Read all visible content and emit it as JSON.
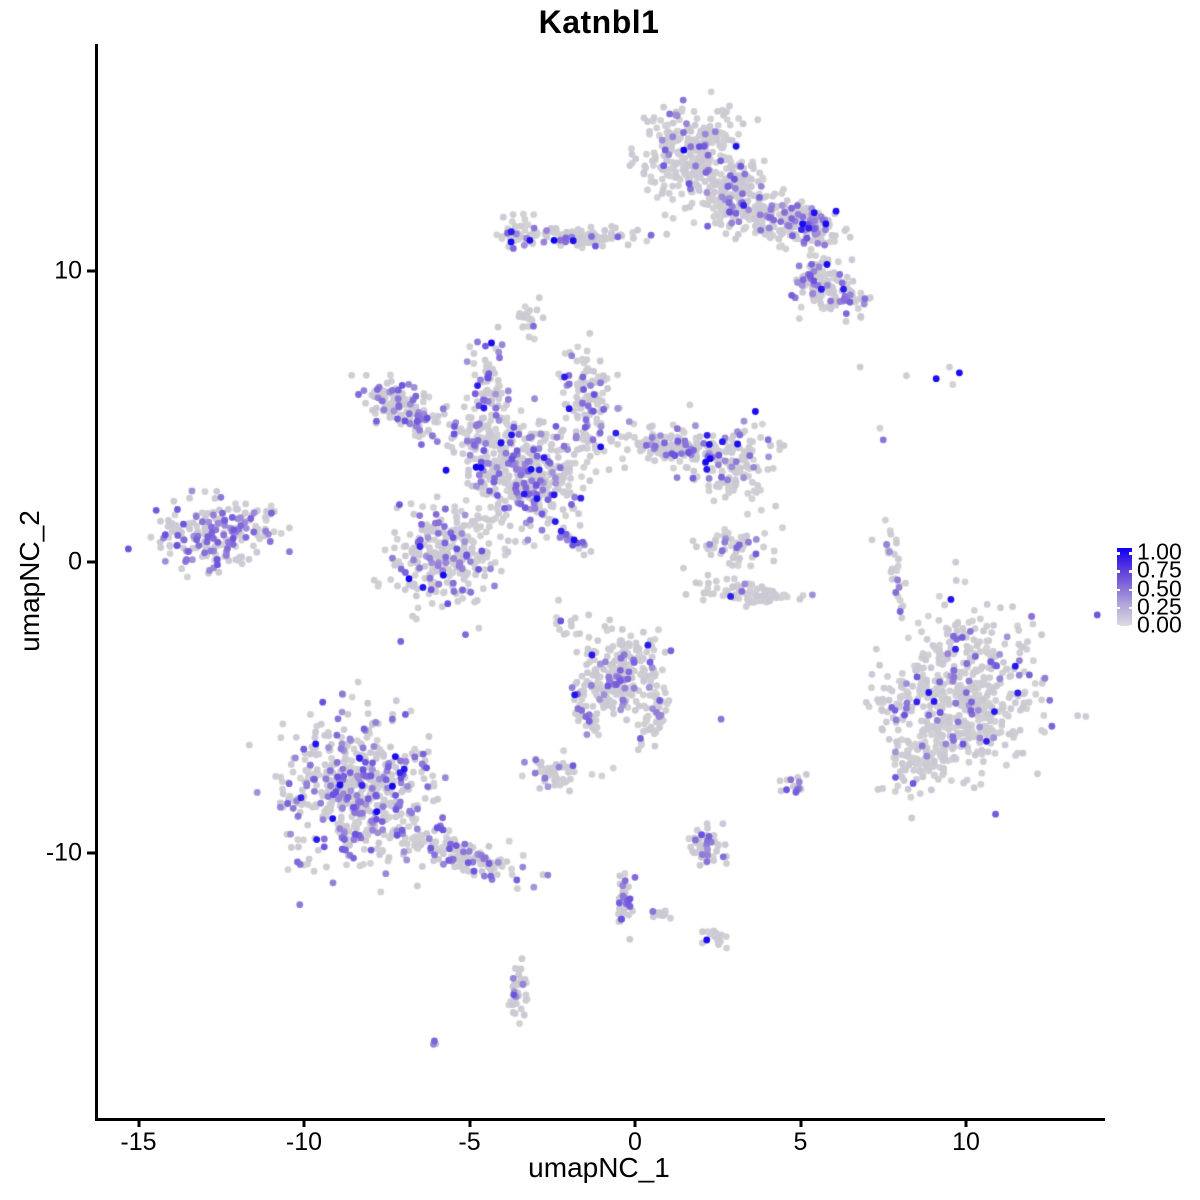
{
  "chart_data": {
    "type": "scatter",
    "title": "Katnbl1",
    "xlabel": "umapNC_1",
    "ylabel": "umapNC_2",
    "xlim": [
      -16.3,
      14.1
    ],
    "ylim": [
      -19.1,
      17.8
    ],
    "grid": false,
    "x_ticks": [
      {
        "v": -15,
        "label": "-15"
      },
      {
        "v": -10,
        "label": "-10"
      },
      {
        "v": -5,
        "label": "-5"
      },
      {
        "v": 0,
        "label": "0"
      },
      {
        "v": 5,
        "label": "5"
      },
      {
        "v": 10,
        "label": "10"
      }
    ],
    "y_ticks": [
      {
        "v": -10,
        "label": "-10"
      },
      {
        "v": 0,
        "label": "0"
      },
      {
        "v": 10,
        "label": "10"
      }
    ],
    "legend": {
      "position": "right",
      "ticks": [
        {
          "v": 1.0,
          "label": "1.00"
        },
        {
          "v": 0.75,
          "label": "0.75"
        },
        {
          "v": 0.5,
          "label": "0.50"
        },
        {
          "v": 0.25,
          "label": "0.25"
        },
        {
          "v": 0.0,
          "label": "0.00"
        }
      ]
    },
    "point_colors": {
      "low": "#D3D3D3",
      "mid": "#866CD9",
      "high": "#0D00F5"
    },
    "clusters": [
      {
        "name": "top-core",
        "x": 1.7,
        "y": 14.1,
        "sx": 0.75,
        "sy": 0.78,
        "rot": 0,
        "n": 300,
        "mid": 0.1,
        "high": 0.01
      },
      {
        "name": "top-bridge",
        "x": 2.9,
        "y": 12.8,
        "sx": 0.6,
        "sy": 0.45,
        "rot": 0,
        "n": 130,
        "mid": 0.1,
        "high": 0.01
      },
      {
        "name": "top-band",
        "x": 3.9,
        "y": 11.8,
        "sx": 1.05,
        "sy": 0.42,
        "rot": -16,
        "n": 210,
        "mid": 0.13,
        "high": 0.015
      },
      {
        "name": "top-band-end",
        "x": 5.3,
        "y": 11.6,
        "sx": 0.33,
        "sy": 0.27,
        "rot": 0,
        "n": 85,
        "mid": 0.32,
        "high": 0.05
      },
      {
        "name": "top-right-lower",
        "x": 5.6,
        "y": 9.6,
        "sx": 0.36,
        "sy": 0.5,
        "rot": 0,
        "n": 105,
        "mid": 0.2,
        "high": 0.015
      },
      {
        "name": "top-right-edge",
        "x": 6.4,
        "y": 9.0,
        "sx": 0.33,
        "sy": 0.35,
        "rot": 0,
        "n": 40,
        "mid": 0.28,
        "high": 0.03
      },
      {
        "name": "top-left-arm",
        "x": -1.8,
        "y": 11.15,
        "sx": 1.0,
        "sy": 0.17,
        "rot": 0,
        "n": 115,
        "mid": 0.1,
        "high": 0.012
      },
      {
        "name": "top-left-arm-end",
        "x": -3.55,
        "y": 11.25,
        "sx": 0.33,
        "sy": 0.3,
        "rot": 0,
        "n": 40,
        "mid": 0.22,
        "high": 0.05
      },
      {
        "name": "top-left-dot",
        "x": -3.2,
        "y": 8.4,
        "sx": 0.26,
        "sy": 0.3,
        "rot": 0,
        "n": 22,
        "mid": 0.1,
        "high": 0
      },
      {
        "name": "central-core",
        "x": -3.3,
        "y": 3.0,
        "sx": 0.95,
        "sy": 0.95,
        "rot": 0,
        "n": 420,
        "mid": 0.22,
        "high": 0.025
      },
      {
        "name": "central-arm-topleft",
        "x": -7.0,
        "y": 5.25,
        "sx": 0.68,
        "sy": 0.4,
        "rot": -33,
        "n": 140,
        "mid": 0.3,
        "high": 0.01
      },
      {
        "name": "central-junction",
        "x": -4.8,
        "y": 4.3,
        "sx": 0.45,
        "sy": 0.45,
        "rot": 0,
        "n": 60,
        "mid": 0.25,
        "high": 0.01
      },
      {
        "name": "central-arm-up",
        "x": -4.35,
        "y": 6.0,
        "sx": 0.3,
        "sy": 0.75,
        "rot": 0,
        "n": 70,
        "mid": 0.25,
        "high": 0.02
      },
      {
        "name": "central-arm-topmid",
        "x": -1.45,
        "y": 5.7,
        "sx": 0.4,
        "sy": 0.8,
        "rot": 12,
        "n": 105,
        "mid": 0.2,
        "high": 0.03
      },
      {
        "name": "central-arm-right",
        "x": 1.0,
        "y": 3.95,
        "sx": 0.95,
        "sy": 0.3,
        "rot": -8,
        "n": 145,
        "mid": 0.18,
        "high": 0.02
      },
      {
        "name": "central-right-blob",
        "x": 2.9,
        "y": 3.4,
        "sx": 0.7,
        "sy": 0.65,
        "rot": 0,
        "n": 135,
        "mid": 0.15,
        "high": 0.03
      },
      {
        "name": "central-bottom-blob",
        "x": -5.7,
        "y": 0.2,
        "sx": 0.78,
        "sy": 0.9,
        "rot": 0,
        "n": 280,
        "mid": 0.2,
        "high": 0.015
      },
      {
        "name": "central-streak",
        "x": -2.05,
        "y": 0.9,
        "sx": 0.7,
        "sy": 0.1,
        "rot": -42,
        "n": 26,
        "mid": 0.35,
        "high": 0.06
      },
      {
        "name": "left-cluster",
        "x": -12.9,
        "y": 0.85,
        "sx": 0.82,
        "sy": 0.6,
        "rot": 0,
        "n": 165,
        "mid": 0.38,
        "high": 0.012
      },
      {
        "name": "left-cluster-tail",
        "x": -11.4,
        "y": 1.5,
        "sx": 0.4,
        "sy": 0.35,
        "rot": 0,
        "n": 28,
        "mid": 0.3,
        "high": 0
      },
      {
        "name": "right-streak",
        "x": 7.8,
        "y": 0.05,
        "sx": 0.12,
        "sy": 0.9,
        "rot": 8,
        "n": 32,
        "mid": 0.15,
        "high": 0
      },
      {
        "name": "mid-right-top",
        "x": 3.0,
        "y": 0.45,
        "sx": 0.55,
        "sy": 0.38,
        "rot": 0,
        "n": 55,
        "mid": 0.12,
        "high": 0
      },
      {
        "name": "mid-right-arc",
        "x": 3.4,
        "y": -1.05,
        "sx": 0.85,
        "sy": 0.22,
        "rot": -6,
        "n": 80,
        "mid": 0.04,
        "high": 0.013
      },
      {
        "name": "right-core",
        "x": 10.15,
        "y": -4.55,
        "sx": 1.08,
        "sy": 1.35,
        "rot": 0,
        "n": 480,
        "mid": 0.1,
        "high": 0.02
      },
      {
        "name": "right-satellite",
        "x": 7.85,
        "y": -4.9,
        "sx": 0.4,
        "sy": 0.35,
        "rot": 0,
        "n": 40,
        "mid": 0.3,
        "high": 0
      },
      {
        "name": "right-bottom",
        "x": 8.7,
        "y": -6.7,
        "sx": 0.65,
        "sy": 0.6,
        "rot": 0,
        "n": 110,
        "mid": 0.08,
        "high": 0.02
      },
      {
        "name": "bottom-mid-core",
        "x": -0.45,
        "y": -3.8,
        "sx": 0.66,
        "sy": 0.74,
        "rot": 0,
        "n": 210,
        "mid": 0.13,
        "high": 0.025
      },
      {
        "name": "bottom-mid-arm-left",
        "x": -1.45,
        "y": -5.3,
        "sx": 0.16,
        "sy": 0.6,
        "rot": 15,
        "n": 34,
        "mid": 0.25,
        "high": 0
      },
      {
        "name": "bottom-mid-arm-right",
        "x": 0.55,
        "y": -5.5,
        "sx": 0.2,
        "sy": 0.65,
        "rot": -15,
        "n": 40,
        "mid": 0.15,
        "high": 0
      },
      {
        "name": "bottomleft-core",
        "x": -8.5,
        "y": -7.9,
        "sx": 1.05,
        "sy": 1.25,
        "rot": 0,
        "n": 560,
        "mid": 0.25,
        "high": 0.012
      },
      {
        "name": "bottomleft-tail",
        "x": -5.2,
        "y": -10.1,
        "sx": 1.0,
        "sy": 0.3,
        "rot": -21,
        "n": 130,
        "mid": 0.3,
        "high": 0.008
      },
      {
        "name": "small-blob-left",
        "x": -2.5,
        "y": -7.25,
        "sx": 0.33,
        "sy": 0.27,
        "rot": 0,
        "n": 42,
        "mid": 0.12,
        "high": 0
      },
      {
        "name": "small-blob-right",
        "x": 4.85,
        "y": -7.6,
        "sx": 0.17,
        "sy": 0.2,
        "rot": 0,
        "n": 16,
        "mid": 0.35,
        "high": 0
      },
      {
        "name": "bottom-small",
        "x": 2.2,
        "y": -9.75,
        "sx": 0.33,
        "sy": 0.36,
        "rot": 0,
        "n": 55,
        "mid": 0.2,
        "high": 0
      },
      {
        "name": "bottom-strand",
        "x": -0.35,
        "y": -11.7,
        "sx": 0.12,
        "sy": 0.55,
        "rot": 0,
        "n": 40,
        "mid": 0.25,
        "high": 0
      },
      {
        "name": "bottom-pair",
        "x": 0.8,
        "y": -12.1,
        "sx": 0.3,
        "sy": 0.12,
        "rot": 0,
        "n": 10,
        "mid": 0.3,
        "high": 0
      },
      {
        "name": "bottom-blue-blob",
        "x": 2.3,
        "y": -12.9,
        "sx": 0.27,
        "sy": 0.16,
        "rot": 0,
        "n": 18,
        "mid": 0.08,
        "high": 0.14
      },
      {
        "name": "bottom-tail",
        "x": -3.5,
        "y": -14.9,
        "sx": 0.14,
        "sy": 0.58,
        "rot": 0,
        "n": 36,
        "mid": 0.22,
        "high": 0
      },
      {
        "name": "bottom-dot",
        "x": -6.1,
        "y": -16.5,
        "sx": 0.1,
        "sy": 0.08,
        "rot": 0,
        "n": 3,
        "mid": 0.4,
        "high": 0
      },
      {
        "name": "connector-blob",
        "x": -2.15,
        "y": -2.1,
        "sx": 0.22,
        "sy": 0.4,
        "rot": 0,
        "n": 14,
        "mid": 0.1,
        "high": 0
      }
    ],
    "singletons": [
      {
        "x": 6.8,
        "y": 6.7,
        "v": 0
      },
      {
        "x": 8.2,
        "y": 6.4,
        "v": 0
      },
      {
        "x": 9.5,
        "y": 6.7,
        "v": 0
      },
      {
        "x": 9.6,
        "y": 6.1,
        "v": 0
      },
      {
        "x": 9.1,
        "y": 6.3,
        "v": 1
      },
      {
        "x": 9.8,
        "y": 6.5,
        "v": 1
      },
      {
        "x": 7.4,
        "y": 4.6,
        "v": 0
      },
      {
        "x": 7.5,
        "y": 4.2,
        "v": 0.5
      },
      {
        "x": 2.6,
        "y": -5.4,
        "v": 0.5
      },
      {
        "x": -1.3,
        "y": -7.3,
        "v": 0
      },
      {
        "x": -1.0,
        "y": -7.35,
        "v": 0
      }
    ]
  }
}
